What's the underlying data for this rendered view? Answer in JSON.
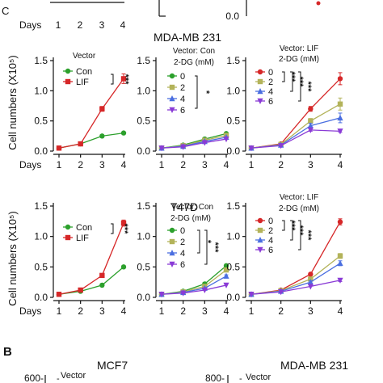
{
  "colors": {
    "con": "#2ca02c",
    "lif": "#d62728",
    "dg0_vector_con": "#2ca02c",
    "dg2": "#b3b35a",
    "dg4": "#4a6ee0",
    "dg6": "#8a3bd6",
    "dg0_vector_lif": "#d62728"
  },
  "labels": {
    "top_days": "Days",
    "top_ticks": [
      "1",
      "2",
      "3",
      "4"
    ],
    "top_y0": "0.0",
    "top_c_fragment": "C",
    "mda_title": "MDA-MB 231",
    "t47d_title": "T47D",
    "ylabel": "Cell numbers (X10⁵)",
    "panel_b": "B",
    "b_left_title": "MCF7",
    "b_right_title": "MDA-MB 231",
    "b_vector": "Vector",
    "b_600": "600-",
    "b_800": "800-",
    "b_dash": "-"
  },
  "chart_data": [
    {
      "type": "line",
      "title": "MDA-MB 231",
      "header": "Vector",
      "ylabel": "Cell numbers (X10⁵)",
      "x": [
        1,
        2,
        3,
        4
      ],
      "xlabel_prefix": "Days",
      "ylim": [
        0,
        1.5
      ],
      "yticks": [
        "0.0",
        "0.5",
        "1.0",
        "1.5"
      ],
      "series": [
        {
          "name": "Con",
          "values": [
            0.05,
            0.12,
            0.25,
            0.3
          ],
          "err": [
            0.01,
            0.01,
            0.02,
            0.02
          ],
          "color": "#2ca02c",
          "marker": "circle"
        },
        {
          "name": "LIF",
          "values": [
            0.05,
            0.12,
            0.7,
            1.2
          ],
          "err": [
            0.01,
            0.01,
            0.04,
            0.08
          ],
          "color": "#d62728",
          "marker": "square"
        }
      ],
      "significance": [
        "***"
      ]
    },
    {
      "type": "line",
      "header": "Vector: Con",
      "legend_title": "2-DG (mM)",
      "x": [
        1,
        2,
        3,
        4
      ],
      "ylim": [
        0,
        1.5
      ],
      "series": [
        {
          "name": "0",
          "values": [
            0.05,
            0.1,
            0.2,
            0.29
          ],
          "err": [
            0.01,
            0.01,
            0.01,
            0.01
          ],
          "color": "#2ca02c",
          "marker": "circle"
        },
        {
          "name": "2",
          "values": [
            0.05,
            0.09,
            0.18,
            0.26
          ],
          "err": [
            0.01,
            0.01,
            0.01,
            0.01
          ],
          "color": "#b3b35a",
          "marker": "square"
        },
        {
          "name": "4",
          "values": [
            0.05,
            0.08,
            0.16,
            0.23
          ],
          "err": [
            0.01,
            0.01,
            0.01,
            0.01
          ],
          "color": "#4a6ee0",
          "marker": "triangle-up"
        },
        {
          "name": "6",
          "values": [
            0.05,
            0.07,
            0.14,
            0.2
          ],
          "err": [
            0.01,
            0.01,
            0.01,
            0.01
          ],
          "color": "#8a3bd6",
          "marker": "triangle-down"
        }
      ],
      "significance": [
        "*"
      ]
    },
    {
      "type": "line",
      "header": "Vector: LIF",
      "legend_title": "2-DG (mM)",
      "x": [
        1,
        2,
        3,
        4
      ],
      "ylim": [
        0,
        1.5
      ],
      "series": [
        {
          "name": "0",
          "values": [
            0.05,
            0.12,
            0.7,
            1.2
          ],
          "err": [
            0.01,
            0.01,
            0.04,
            0.1
          ],
          "color": "#d62728",
          "marker": "circle"
        },
        {
          "name": "2",
          "values": [
            0.05,
            0.11,
            0.5,
            0.78
          ],
          "err": [
            0.01,
            0.01,
            0.04,
            0.1
          ],
          "color": "#b3b35a",
          "marker": "square"
        },
        {
          "name": "4",
          "values": [
            0.05,
            0.1,
            0.42,
            0.55
          ],
          "err": [
            0.01,
            0.01,
            0.04,
            0.08
          ],
          "color": "#4a6ee0",
          "marker": "triangle-up"
        },
        {
          "name": "6",
          "values": [
            0.05,
            0.09,
            0.35,
            0.33
          ],
          "err": [
            0.01,
            0.01,
            0.02,
            0.02
          ],
          "color": "#8a3bd6",
          "marker": "triangle-down"
        }
      ],
      "significance": [
        "***",
        "***",
        "***"
      ]
    },
    {
      "type": "line",
      "title": "T47D",
      "ylabel": "Cell numbers (X10⁵)",
      "x": [
        1,
        2,
        3,
        4
      ],
      "xlabel_prefix": "Days",
      "ylim": [
        0,
        1.5
      ],
      "yticks": [
        "0.0",
        "0.5",
        "1.0",
        "1.5"
      ],
      "series": [
        {
          "name": "Con",
          "values": [
            0.05,
            0.1,
            0.2,
            0.5
          ],
          "err": [
            0.01,
            0.01,
            0.01,
            0.02
          ],
          "color": "#2ca02c",
          "marker": "circle"
        },
        {
          "name": "LIF",
          "values": [
            0.05,
            0.12,
            0.36,
            1.22
          ],
          "err": [
            0.01,
            0.01,
            0.02,
            0.05
          ],
          "color": "#d62728",
          "marker": "square"
        }
      ],
      "significance": [
        "***"
      ]
    },
    {
      "type": "line",
      "header": "Vector: Con",
      "legend_title": "2-DG (mM)",
      "x": [
        1,
        2,
        3,
        4
      ],
      "ylim": [
        0,
        1.5
      ],
      "series": [
        {
          "name": "0",
          "values": [
            0.05,
            0.1,
            0.22,
            0.52
          ],
          "err": [
            0.01,
            0.01,
            0.01,
            0.02
          ],
          "color": "#2ca02c",
          "marker": "circle"
        },
        {
          "name": "2",
          "values": [
            0.05,
            0.09,
            0.18,
            0.45
          ],
          "err": [
            0.01,
            0.01,
            0.01,
            0.02
          ],
          "color": "#b3b35a",
          "marker": "square"
        },
        {
          "name": "4",
          "values": [
            0.05,
            0.08,
            0.15,
            0.35
          ],
          "err": [
            0.01,
            0.01,
            0.01,
            0.02
          ],
          "color": "#4a6ee0",
          "marker": "triangle-up"
        },
        {
          "name": "6",
          "values": [
            0.05,
            0.07,
            0.12,
            0.2
          ],
          "err": [
            0.01,
            0.01,
            0.01,
            0.01
          ],
          "color": "#8a3bd6",
          "marker": "triangle-down"
        }
      ],
      "significance": [
        "*",
        "***"
      ]
    },
    {
      "type": "line",
      "header": "Vector: LIF",
      "legend_title": "2-DG (mM)",
      "x": [
        1,
        2,
        3,
        4
      ],
      "ylim": [
        0,
        1.5
      ],
      "series": [
        {
          "name": "0",
          "values": [
            0.05,
            0.12,
            0.38,
            1.24
          ],
          "err": [
            0.01,
            0.01,
            0.02,
            0.05
          ],
          "color": "#d62728",
          "marker": "circle"
        },
        {
          "name": "2",
          "values": [
            0.05,
            0.11,
            0.3,
            0.68
          ],
          "err": [
            0.01,
            0.01,
            0.02,
            0.04
          ],
          "color": "#b3b35a",
          "marker": "square"
        },
        {
          "name": "4",
          "values": [
            0.05,
            0.1,
            0.25,
            0.56
          ],
          "err": [
            0.01,
            0.01,
            0.02,
            0.04
          ],
          "color": "#4a6ee0",
          "marker": "triangle-up"
        },
        {
          "name": "6",
          "values": [
            0.05,
            0.09,
            0.18,
            0.28
          ],
          "err": [
            0.01,
            0.01,
            0.01,
            0.02
          ],
          "color": "#8a3bd6",
          "marker": "triangle-down"
        }
      ],
      "significance": [
        "***",
        "***",
        "***"
      ]
    }
  ]
}
